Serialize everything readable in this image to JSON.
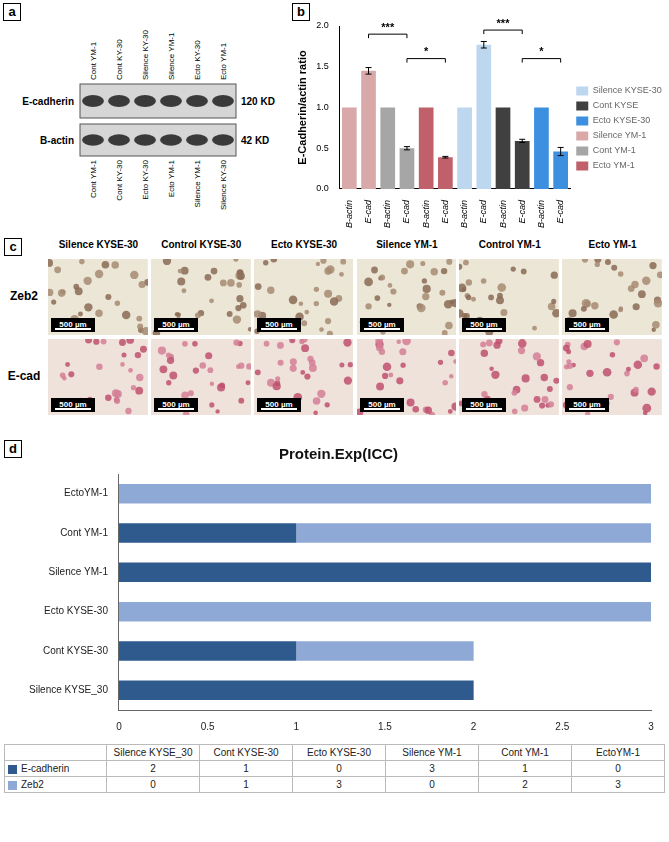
{
  "panel_a": {
    "panel": "a",
    "top_labels": [
      "Cont YM-1",
      "Cont KY-30",
      "Silence KY-30",
      "Silence YM-1",
      "Ecto KY-30",
      "Ecto YM-1"
    ],
    "bottom_labels": [
      "Cont YM-1",
      "Cont KY-30",
      "Ecto KY-30",
      "Ecto YM-1",
      "Silence YM-1",
      "Silence KY-30"
    ],
    "rows": [
      {
        "label": "E-cadherin",
        "size": "120 KD"
      },
      {
        "label": "B-actin",
        "size": "42 KD"
      }
    ]
  },
  "chart_data": [
    {
      "panel": "b",
      "type": "bar",
      "y_label": "E-Cadherin/actin ratio",
      "categories": [
        "B-actin",
        "E-cad",
        "B-actin",
        "E-cad",
        "B-actin",
        "E-cad",
        "B-actin",
        "E-cad",
        "B-actin",
        "E-cad",
        "B-actin",
        "E-cad"
      ],
      "series": [
        {
          "name": "Silence KYSE-30",
          "color": "#bdd7ee",
          "values": [
            null,
            null,
            null,
            null,
            null,
            null,
            1,
            1.77,
            null,
            null,
            null,
            null
          ],
          "errors": [
            null,
            null,
            null,
            null,
            null,
            null,
            null,
            0.04,
            null,
            null,
            null,
            null
          ]
        },
        {
          "name": "Cont KYSE",
          "color": "#404040",
          "values": [
            null,
            null,
            null,
            null,
            null,
            null,
            null,
            null,
            1,
            0.59,
            null,
            null
          ],
          "errors": [
            null,
            null,
            null,
            null,
            null,
            null,
            null,
            null,
            null,
            0.02,
            null,
            null
          ]
        },
        {
          "name": "Ecto KYSE-30",
          "color": "#3d8fe0",
          "values": [
            null,
            null,
            null,
            null,
            null,
            null,
            null,
            null,
            null,
            null,
            1,
            0.46
          ],
          "errors": [
            null,
            null,
            null,
            null,
            null,
            null,
            null,
            null,
            null,
            null,
            null,
            0.05
          ]
        },
        {
          "name": "Silence YM-1",
          "color": "#d9a9a9",
          "values": [
            1,
            1.45,
            null,
            null,
            null,
            null,
            null,
            null,
            null,
            null,
            null,
            null
          ],
          "errors": [
            null,
            0.04,
            null,
            null,
            null,
            null,
            null,
            null,
            null,
            null,
            null,
            null
          ]
        },
        {
          "name": "Cont YM-1",
          "color": "#a6a6a6",
          "values": [
            null,
            null,
            1,
            0.5,
            null,
            null,
            null,
            null,
            null,
            null,
            null,
            null
          ],
          "errors": [
            null,
            null,
            null,
            0.02,
            null,
            null,
            null,
            null,
            null,
            null,
            null,
            null
          ]
        },
        {
          "name": "Ecto YM-1",
          "color": "#c0606a",
          "values": [
            null,
            null,
            null,
            null,
            1,
            0.39,
            null,
            null,
            null,
            null,
            null,
            null
          ],
          "errors": [
            null,
            null,
            null,
            null,
            null,
            0.01,
            null,
            null,
            null,
            null,
            null,
            null
          ]
        }
      ],
      "ylim": [
        0,
        2
      ],
      "yticks": [
        {
          "value": 0,
          "label": "0.0"
        },
        {
          "value": 0.5,
          "label": "0.5"
        },
        {
          "value": 1,
          "label": "1.0"
        },
        {
          "value": 1.5,
          "label": "1.5"
        },
        {
          "value": 2,
          "label": "2.0"
        }
      ],
      "grid": false,
      "legend": "right",
      "annotations": [
        {
          "from": 1,
          "to": 3,
          "y": 1.9,
          "label": "***"
        },
        {
          "from": 3,
          "to": 5,
          "y": 1.6,
          "label": "*"
        },
        {
          "from": 7,
          "to": 9,
          "y": 1.95,
          "label": "***"
        },
        {
          "from": 9,
          "to": 11,
          "y": 1.6,
          "label": "*"
        }
      ]
    },
    {
      "panel": "d",
      "type": "bar",
      "orientation": "horizontal",
      "stacked": true,
      "title": "Protein.Exp(ICC)",
      "categories": [
        "Silence KYSE_30",
        "Cont KYSE-30",
        "Ecto KYSE-30",
        "Silence YM-1",
        "Cont YM-1",
        "EctoYM-1"
      ],
      "series": [
        {
          "name": "E-cadherin",
          "color": "#2e5a8e",
          "values": [
            2,
            1,
            0,
            3,
            1,
            0
          ]
        },
        {
          "name": "Zeb2",
          "color": "#8fa9d6",
          "values": [
            0,
            1,
            3,
            0,
            2,
            3
          ]
        }
      ],
      "xlim": [
        0,
        3
      ],
      "xticks": [
        0,
        0.5,
        1,
        1.5,
        2,
        2.5,
        3
      ],
      "grid": false
    }
  ],
  "panel_c": {
    "panel": "c",
    "columns": [
      "Silence KYSE-30",
      "Control KYSE-30",
      "Ecto KYSE-30",
      "Silence YM-1",
      "Control YM-1",
      "Ecto YM-1"
    ],
    "rows": [
      "Zeb2",
      "E-cad"
    ],
    "scale_bar": "500 µm"
  }
}
